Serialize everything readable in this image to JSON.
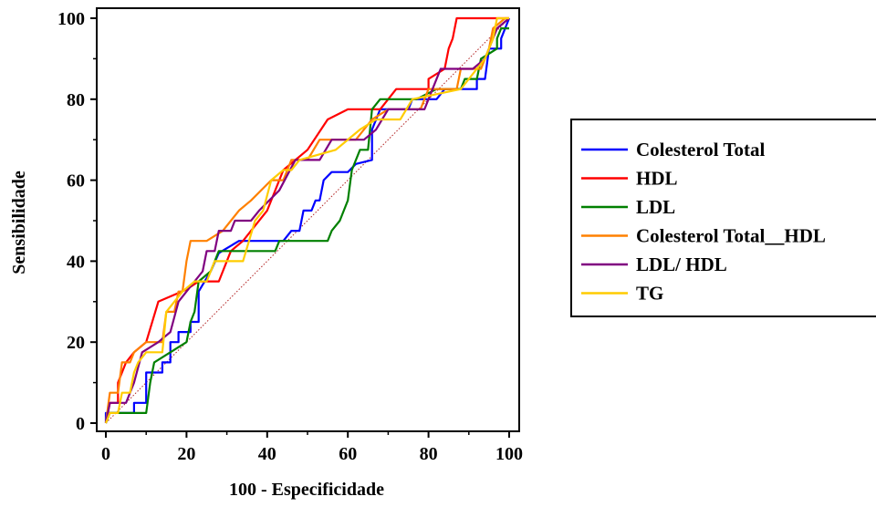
{
  "chart_data": {
    "type": "line",
    "title": "",
    "xlabel": "100 - Especificidade",
    "ylabel": "Sensibilidade",
    "xlim": [
      0,
      100
    ],
    "ylim": [
      0,
      100
    ],
    "xticks": [
      "0",
      "20",
      "40",
      "60",
      "80",
      "100"
    ],
    "yticks": [
      "0",
      "20",
      "40",
      "60",
      "80",
      "100"
    ],
    "grid": false,
    "legend_position": "right",
    "reference_line": {
      "from": [
        0,
        0
      ],
      "to": [
        100,
        100
      ],
      "color": "#b22222",
      "style": "dotted"
    },
    "series": [
      {
        "name": "Colesterol Total",
        "color": "#0000ff",
        "points": [
          [
            0,
            0
          ],
          [
            0,
            2.5
          ],
          [
            7,
            2.5
          ],
          [
            7,
            5
          ],
          [
            10,
            5
          ],
          [
            10,
            12.5
          ],
          [
            14,
            12.5
          ],
          [
            14,
            15
          ],
          [
            16,
            15
          ],
          [
            16,
            20
          ],
          [
            18,
            20
          ],
          [
            18,
            22.5
          ],
          [
            21,
            22.5
          ],
          [
            21,
            25
          ],
          [
            23,
            25
          ],
          [
            23,
            32.5
          ],
          [
            26,
            37.5
          ],
          [
            28,
            42
          ],
          [
            33,
            45
          ],
          [
            44,
            45
          ],
          [
            46,
            47.5
          ],
          [
            48,
            47.5
          ],
          [
            49,
            52.5
          ],
          [
            51,
            52.5
          ],
          [
            52,
            55
          ],
          [
            53,
            55
          ],
          [
            54,
            60
          ],
          [
            56,
            62
          ],
          [
            60,
            62
          ],
          [
            62,
            64
          ],
          [
            66,
            65
          ],
          [
            66,
            72.5
          ],
          [
            68,
            77.5
          ],
          [
            75,
            77.5
          ],
          [
            76,
            80
          ],
          [
            82,
            80
          ],
          [
            84,
            82.5
          ],
          [
            92,
            82.5
          ],
          [
            92,
            85
          ],
          [
            94,
            85
          ],
          [
            95,
            92.5
          ],
          [
            98,
            92.5
          ],
          [
            98,
            95
          ],
          [
            100,
            100
          ]
        ]
      },
      {
        "name": "HDL",
        "color": "#ff0000",
        "points": [
          [
            0,
            0
          ],
          [
            1,
            5
          ],
          [
            3,
            5
          ],
          [
            3,
            10
          ],
          [
            5,
            15
          ],
          [
            7,
            17.5
          ],
          [
            10,
            20
          ],
          [
            13,
            30
          ],
          [
            20,
            33
          ],
          [
            23,
            35
          ],
          [
            28,
            35
          ],
          [
            31,
            42.5
          ],
          [
            34,
            45
          ],
          [
            36,
            47.5
          ],
          [
            40,
            52.5
          ],
          [
            44,
            62.5
          ],
          [
            50,
            67.5
          ],
          [
            55,
            75
          ],
          [
            60,
            77.5
          ],
          [
            68,
            77.5
          ],
          [
            72,
            82.5
          ],
          [
            80,
            82.5
          ],
          [
            80,
            85
          ],
          [
            84,
            87.5
          ],
          [
            85,
            92.5
          ],
          [
            86,
            95
          ],
          [
            87,
            100
          ],
          [
            100,
            100
          ]
        ]
      },
      {
        "name": "LDL",
        "color": "#008000",
        "points": [
          [
            0,
            0
          ],
          [
            1,
            2.5
          ],
          [
            10,
            2.5
          ],
          [
            11,
            10
          ],
          [
            12,
            15
          ],
          [
            16,
            17.5
          ],
          [
            20,
            20
          ],
          [
            21,
            25
          ],
          [
            22,
            27.5
          ],
          [
            23,
            35
          ],
          [
            26,
            37.5
          ],
          [
            28,
            42.5
          ],
          [
            42,
            42.5
          ],
          [
            43,
            45
          ],
          [
            55,
            45
          ],
          [
            56,
            47.5
          ],
          [
            58,
            50
          ],
          [
            59,
            52.5
          ],
          [
            60,
            55
          ],
          [
            61,
            62.5
          ],
          [
            63,
            67.5
          ],
          [
            65,
            67.5
          ],
          [
            66,
            77.5
          ],
          [
            68,
            80
          ],
          [
            77,
            80
          ],
          [
            82,
            82.5
          ],
          [
            88,
            82.5
          ],
          [
            89,
            85
          ],
          [
            92,
            85
          ],
          [
            93,
            90
          ],
          [
            97,
            92.5
          ],
          [
            97,
            95
          ],
          [
            98,
            97.5
          ],
          [
            100,
            97.5
          ]
        ]
      },
      {
        "name": "Colesterol Total__HDL",
        "color": "#ff8000",
        "points": [
          [
            0,
            0
          ],
          [
            1,
            7.5
          ],
          [
            3,
            7.5
          ],
          [
            4,
            15
          ],
          [
            6,
            15
          ],
          [
            7,
            17.5
          ],
          [
            10,
            20
          ],
          [
            14,
            20
          ],
          [
            15,
            27.5
          ],
          [
            17,
            27.5
          ],
          [
            18,
            32.5
          ],
          [
            19,
            32.5
          ],
          [
            20,
            40
          ],
          [
            21,
            45
          ],
          [
            25,
            45
          ],
          [
            29,
            47.5
          ],
          [
            33,
            52.5
          ],
          [
            36,
            55
          ],
          [
            41,
            60
          ],
          [
            44,
            60
          ],
          [
            46,
            65
          ],
          [
            50,
            65
          ],
          [
            53,
            70
          ],
          [
            62,
            70
          ],
          [
            66,
            75
          ],
          [
            70,
            77.5
          ],
          [
            78,
            77.5
          ],
          [
            80,
            82.5
          ],
          [
            87,
            82.5
          ],
          [
            88,
            87.5
          ],
          [
            93,
            87.5
          ],
          [
            95,
            92.5
          ],
          [
            96,
            97.5
          ],
          [
            99,
            100
          ],
          [
            100,
            100
          ]
        ]
      },
      {
        "name": "LDL/ HDL",
        "color": "#800080",
        "points": [
          [
            0,
            0
          ],
          [
            1,
            5
          ],
          [
            5,
            5
          ],
          [
            7,
            10
          ],
          [
            9,
            17.5
          ],
          [
            13,
            20
          ],
          [
            16,
            22.5
          ],
          [
            18,
            30
          ],
          [
            20,
            32.5
          ],
          [
            24,
            37.5
          ],
          [
            25,
            42.5
          ],
          [
            27,
            42.5
          ],
          [
            28,
            47.5
          ],
          [
            31,
            47.5
          ],
          [
            32,
            50
          ],
          [
            36,
            50
          ],
          [
            38,
            52.5
          ],
          [
            43,
            57.5
          ],
          [
            47,
            65
          ],
          [
            53,
            65
          ],
          [
            56,
            70
          ],
          [
            64,
            70
          ],
          [
            67,
            72.5
          ],
          [
            70,
            77.5
          ],
          [
            79,
            77.5
          ],
          [
            81,
            82.5
          ],
          [
            83,
            87.5
          ],
          [
            91,
            87.5
          ],
          [
            94,
            90
          ],
          [
            96,
            95
          ],
          [
            97,
            97.5
          ],
          [
            100,
            100
          ]
        ]
      },
      {
        "name": "TG",
        "color": "#ffcc00",
        "points": [
          [
            0,
            0
          ],
          [
            1,
            2.5
          ],
          [
            3,
            2.5
          ],
          [
            4,
            7.5
          ],
          [
            6,
            7.5
          ],
          [
            7,
            12.5
          ],
          [
            8,
            15
          ],
          [
            10,
            17.5
          ],
          [
            14,
            17.5
          ],
          [
            15,
            27.5
          ],
          [
            17,
            30
          ],
          [
            19,
            32.5
          ],
          [
            22,
            35
          ],
          [
            25,
            35
          ],
          [
            27,
            40
          ],
          [
            34,
            40
          ],
          [
            37,
            50
          ],
          [
            39,
            52.5
          ],
          [
            41,
            60
          ],
          [
            44,
            62.5
          ],
          [
            46,
            62.5
          ],
          [
            48,
            65
          ],
          [
            57,
            67.5
          ],
          [
            63,
            72.5
          ],
          [
            67,
            75
          ],
          [
            73,
            75
          ],
          [
            76,
            80
          ],
          [
            88,
            82.5
          ],
          [
            92,
            87.5
          ],
          [
            94,
            90
          ],
          [
            96,
            95
          ],
          [
            97,
            100
          ],
          [
            100,
            100
          ]
        ]
      }
    ]
  }
}
